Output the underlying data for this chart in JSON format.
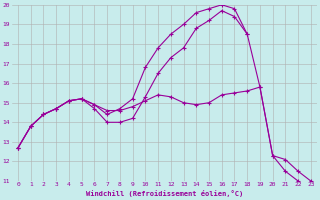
{
  "xlabel": "Windchill (Refroidissement éolien,°C)",
  "bg_color": "#c8ecec",
  "line_color": "#990099",
  "grid_color": "#b0b0b0",
  "xlim": [
    -0.5,
    23.5
  ],
  "ylim": [
    11,
    20
  ],
  "yticks": [
    11,
    12,
    13,
    14,
    15,
    16,
    17,
    18,
    19,
    20
  ],
  "xticks": [
    0,
    1,
    2,
    3,
    4,
    5,
    6,
    7,
    8,
    9,
    10,
    11,
    12,
    13,
    14,
    15,
    16,
    17,
    18,
    19,
    20,
    21,
    22,
    23
  ],
  "s1x": [
    0,
    1,
    2,
    3,
    4,
    5,
    6,
    7,
    8,
    9,
    10,
    11,
    12,
    13,
    14,
    15,
    16,
    17,
    18,
    19,
    20,
    21,
    22,
    23
  ],
  "s1y": [
    12.7,
    13.8,
    14.4,
    14.7,
    15.1,
    15.2,
    14.9,
    14.6,
    14.6,
    14.8,
    15.1,
    15.4,
    15.3,
    15.0,
    14.9,
    15.0,
    15.4,
    15.5,
    15.6,
    15.8,
    12.3,
    12.1,
    11.5,
    11.0
  ],
  "s2x": [
    0,
    1,
    2,
    3,
    4,
    5,
    6,
    7,
    8,
    9,
    10,
    11,
    12,
    13,
    14,
    15,
    16,
    17,
    18
  ],
  "s2y": [
    12.7,
    13.8,
    14.4,
    14.7,
    15.1,
    15.2,
    14.9,
    14.4,
    14.7,
    15.2,
    16.8,
    17.8,
    18.5,
    19.0,
    19.6,
    19.8,
    20.0,
    19.8,
    18.5
  ],
  "s3x": [
    0,
    1,
    2,
    3,
    4,
    5,
    6,
    7,
    8,
    9,
    10,
    11,
    12,
    13,
    14,
    15,
    16,
    17,
    18,
    19,
    20,
    21,
    22,
    23
  ],
  "s3y": [
    12.7,
    13.8,
    14.4,
    14.7,
    15.1,
    15.2,
    14.7,
    14.0,
    14.0,
    14.2,
    15.3,
    16.5,
    17.3,
    17.8,
    18.8,
    19.2,
    19.7,
    19.4,
    18.5,
    15.8,
    12.3,
    11.5,
    11.0,
    null
  ]
}
